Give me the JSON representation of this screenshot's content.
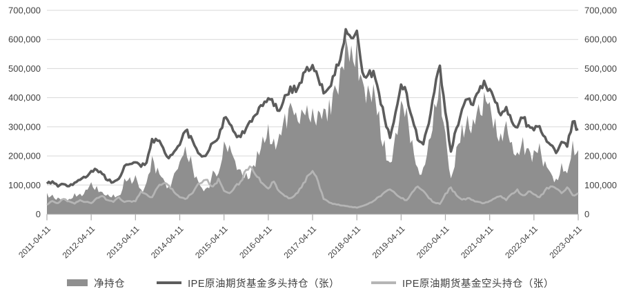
{
  "chart_data": {
    "type": "combo-area-line",
    "title": "",
    "x_tick_labels": [
      "2011-04-11",
      "2012-04-11",
      "2013-04-11",
      "2014-04-11",
      "2015-04-11",
      "2016-04-11",
      "2017-04-11",
      "2018-04-11",
      "2019-04-11",
      "2020-04-11",
      "2021-04-11",
      "2022-04-11",
      "2023-04-11"
    ],
    "y_axis": {
      "min": 0,
      "max": 700000,
      "step": 100000,
      "tick_labels": [
        "0",
        "100,000",
        "200,000",
        "300,000",
        "400,000",
        "500,000",
        "600,000",
        "700,000"
      ],
      "left_axis": true,
      "right_axis": true
    },
    "grid": true,
    "legend_position": "bottom",
    "value_scale": 1000,
    "series": [
      {
        "name": "净持仓",
        "type": "area",
        "color": "#8f8f8f",
        "values_k": [
          73,
          67,
          57,
          51,
          52,
          72,
          70,
          84,
          110,
          97,
          76,
          68,
          68,
          64,
          123,
          127,
          134,
          85,
          109,
          200,
          160,
          123,
          94,
          140,
          180,
          233,
          200,
          130,
          90,
          92,
          150,
          140,
          250,
          238,
          183,
          153,
          143,
          158,
          217,
          267,
          310,
          260,
          277,
          346,
          383,
          350,
          360,
          375,
          364,
          356,
          363,
          395,
          443,
          500,
          607,
          580,
          608,
          460,
          443,
          447,
          355,
          255,
          177,
          280,
          390,
          367,
          255,
          160,
          160,
          255,
          380,
          475,
          280,
          123,
          230,
          310,
          340,
          327,
          378,
          420,
          385,
          330,
          278,
          320,
          248,
          213,
          265,
          227,
          220,
          244,
          183,
          143,
          122,
          176,
          140,
          253,
          220
        ]
      },
      {
        "name": "IPE原油期货基金多头持仓（张）",
        "type": "line",
        "color": "#5c5c5c",
        "values_k": [
          105,
          112,
          95,
          103,
          96,
          108,
          118,
          126,
          148,
          152,
          138,
          116,
          110,
          122,
          165,
          172,
          178,
          163,
          177,
          258,
          252,
          228,
          192,
          215,
          238,
          285,
          268,
          225,
          198,
          210,
          245,
          262,
          330,
          310,
          278,
          265,
          295,
          318,
          345,
          372,
          398,
          372,
          355,
          408,
          438,
          420,
          452,
          505,
          512,
          468,
          415,
          435,
          478,
          530,
          635,
          605,
          630,
          488,
          478,
          492,
          415,
          330,
          262,
          350,
          445,
          415,
          330,
          255,
          240,
          310,
          420,
          510,
          350,
          215,
          295,
          360,
          395,
          375,
          420,
          458,
          430,
          385,
          340,
          368,
          318,
          298,
          330,
          305,
          288,
          302,
          265,
          238,
          210,
          248,
          232,
          318,
          292
        ]
      },
      {
        "name": "IPE原油期货基金空头持仓（张）",
        "type": "line",
        "color": "#b5b5b5",
        "values_k": [
          32,
          45,
          38,
          52,
          44,
          36,
          48,
          42,
          38,
          55,
          62,
          48,
          42,
          58,
          42,
          45,
          44,
          78,
          68,
          58,
          92,
          105,
          98,
          75,
          58,
          52,
          68,
          95,
          108,
          118,
          95,
          122,
          80,
          72,
          95,
          112,
          152,
          160,
          128,
          105,
          88,
          112,
          78,
          62,
          55,
          70,
          92,
          130,
          148,
          112,
          52,
          40,
          35,
          30,
          28,
          25,
          22,
          28,
          35,
          45,
          60,
          75,
          85,
          70,
          55,
          48,
          75,
          95,
          80,
          55,
          40,
          35,
          70,
          92,
          65,
          50,
          55,
          48,
          42,
          38,
          45,
          55,
          62,
          48,
          70,
          85,
          65,
          78,
          68,
          58,
          82,
          95,
          88,
          72,
          92,
          65,
          72
        ]
      }
    ]
  },
  "legend": {
    "items": [
      {
        "label": "净持仓",
        "swatch": "rect",
        "color": "#8f8f8f"
      },
      {
        "label": "IPE原油期货基金多头持仓（张）",
        "swatch": "line",
        "color": "#5c5c5c"
      },
      {
        "label": "IPE原油期货基金空头持仓（张）",
        "swatch": "line",
        "color": "#b5b5b5"
      }
    ]
  },
  "colors": {
    "grid": "#d7d7d7",
    "axis": "#ababab",
    "text": "#3f3f3f",
    "background": "#ffffff"
  }
}
